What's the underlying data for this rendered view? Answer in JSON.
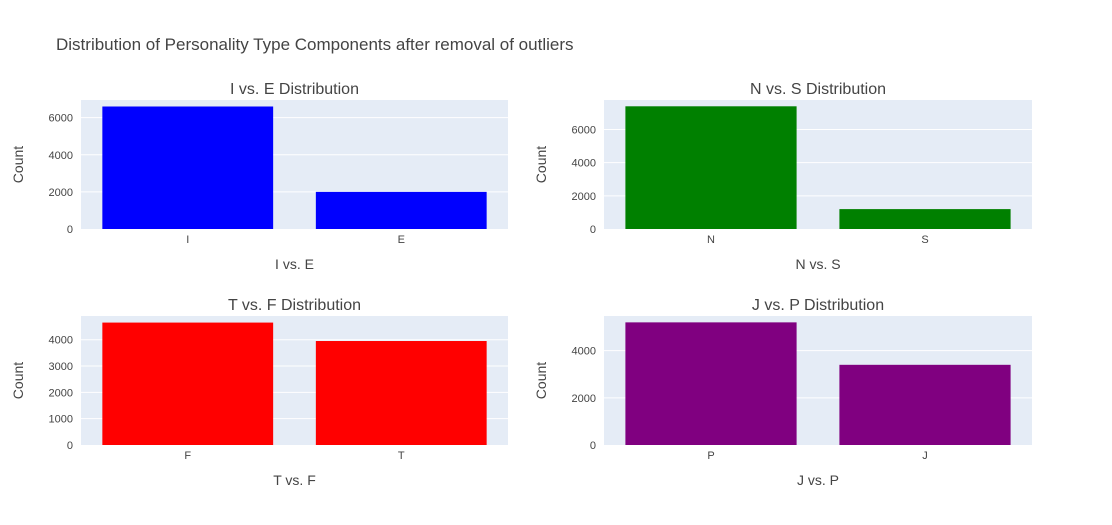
{
  "title": "Distribution of Personality Type Components after removal of outliers",
  "chart_data": [
    {
      "type": "bar",
      "title": "I vs. E Distribution",
      "xlabel": "I vs. E",
      "ylabel": "Count",
      "categories": [
        "I",
        "E"
      ],
      "values": [
        6600,
        2000
      ],
      "ylim": [
        0,
        6950
      ],
      "yticks": [
        0,
        2000,
        4000,
        6000
      ],
      "color": "#0000ff"
    },
    {
      "type": "bar",
      "title": "N vs. S Distribution",
      "xlabel": "N vs. S",
      "ylabel": "Count",
      "categories": [
        "N",
        "S"
      ],
      "values": [
        7400,
        1200
      ],
      "ylim": [
        0,
        7780
      ],
      "yticks": [
        0,
        2000,
        4000,
        6000
      ],
      "color": "#008000"
    },
    {
      "type": "bar",
      "title": "T vs. F Distribution",
      "xlabel": "T vs. F",
      "ylabel": "Count",
      "categories": [
        "F",
        "T"
      ],
      "values": [
        4650,
        3950
      ],
      "ylim": [
        0,
        4900
      ],
      "yticks": [
        0,
        1000,
        2000,
        3000,
        4000
      ],
      "color": "#ff0000"
    },
    {
      "type": "bar",
      "title": "J vs. P Distribution",
      "xlabel": "J vs. P",
      "ylabel": "Count",
      "categories": [
        "P",
        "J"
      ],
      "values": [
        5200,
        3400
      ],
      "ylim": [
        0,
        5470
      ],
      "yticks": [
        0,
        2000,
        4000
      ],
      "color": "#800080"
    }
  ]
}
